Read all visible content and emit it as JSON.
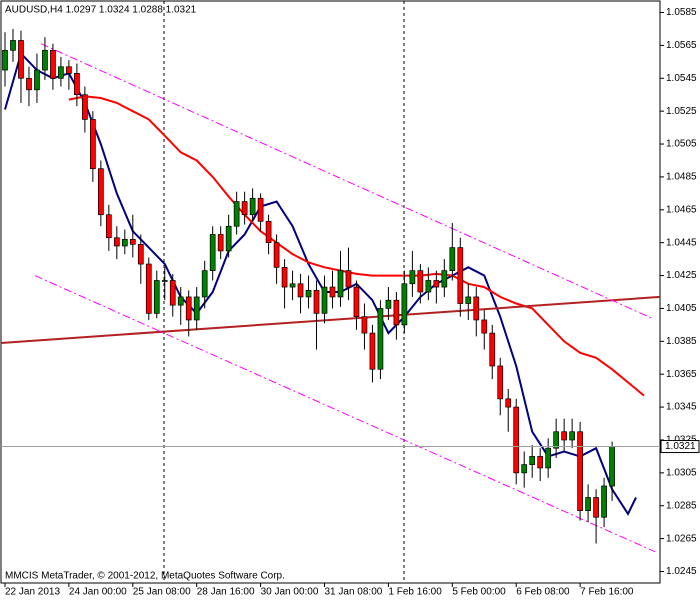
{
  "chart_data": {
    "type": "candlestick",
    "title": "AUDUSD,H4  1.0297 1.0324 1.0288 1.0321",
    "footer": "MMCIS MetaTrader, © 2001-2012, MetaQuotes Software Corp.",
    "categories": [
      "22 Jan 2013",
      null,
      null,
      null,
      null,
      null,
      null,
      null,
      "24 Jan 00:00",
      null,
      null,
      null,
      null,
      null,
      null,
      null,
      "25 Jan 08:00",
      null,
      null,
      null,
      null,
      null,
      null,
      null,
      "28 Jan 16:00",
      null,
      null,
      null,
      null,
      null,
      null,
      null,
      "30 Jan 00:00",
      null,
      null,
      null,
      null,
      null,
      null,
      null,
      "31 Jan 08:00",
      null,
      null,
      null,
      null,
      null,
      null,
      null,
      "1 Feb 16:00",
      null,
      null,
      null,
      null,
      null,
      null,
      null,
      "5 Feb 00:00",
      null,
      null,
      null,
      null,
      null,
      null,
      null,
      "6 Feb 08:00",
      null,
      null,
      null,
      null,
      null,
      null,
      null,
      "7 Feb 16:00",
      null,
      null,
      null,
      null
    ],
    "open": [
      1.055,
      1.0562,
      1.0568,
      1.0545,
      1.0538,
      1.055,
      1.0562,
      1.0545,
      1.0552,
      1.0548,
      1.0535,
      1.052,
      1.049,
      1.0462,
      1.0448,
      1.0443,
      1.0447,
      1.0444,
      1.0432,
      1.0402,
      1.0422,
      1.0422,
      1.0407,
      1.0412,
      1.0398,
      1.0412,
      1.0428,
      1.045,
      1.044,
      1.0455,
      1.047,
      1.0462,
      1.0472,
      1.0458,
      1.0445,
      1.043,
      1.0418,
      1.042,
      1.0412,
      1.0416,
      1.0402,
      1.0418,
      1.0412,
      1.0428,
      1.0418,
      1.04,
      1.039,
      1.0368,
      1.0405,
      1.041,
      1.0395,
      1.042,
      1.0428,
      1.0415,
      1.0422,
      1.0418,
      1.0428,
      1.0442,
      1.0408,
      1.0412,
      1.0398,
      1.039,
      1.037,
      1.035,
      1.0345,
      1.0305,
      1.031,
      1.0315,
      1.0308,
      1.032,
      1.033,
      1.0325,
      1.033,
      1.0282,
      1.029,
      1.0278,
      1.0297
    ],
    "high": [
      1.0573,
      1.0575,
      1.0574,
      1.0552,
      1.056,
      1.057,
      1.0566,
      1.0558,
      1.0556,
      1.0554,
      1.054,
      1.0525,
      1.0495,
      1.0468,
      1.0455,
      1.0453,
      1.0462,
      1.045,
      1.0436,
      1.0428,
      1.043,
      1.0426,
      1.0418,
      1.0416,
      1.0418,
      1.0434,
      1.0455,
      1.0455,
      1.0462,
      1.0476,
      1.0476,
      1.0478,
      1.0475,
      1.0462,
      1.045,
      1.0435,
      1.0428,
      1.0426,
      1.0425,
      1.0422,
      1.0425,
      1.0428,
      1.044,
      1.0442,
      1.0422,
      1.0408,
      1.0395,
      1.041,
      1.0418,
      1.0415,
      1.0428,
      1.044,
      1.0432,
      1.043,
      1.0428,
      1.0435,
      1.0457,
      1.0448,
      1.042,
      1.0418,
      1.0404,
      1.0395,
      1.0375,
      1.0356,
      1.035,
      1.0318,
      1.0322,
      1.032,
      1.0326,
      1.0338,
      1.0338,
      1.0338,
      1.0336,
      1.0298,
      1.0295,
      1.0302,
      1.0324
    ],
    "low": [
      1.054,
      1.0555,
      1.053,
      1.0528,
      1.053,
      1.0544,
      1.0538,
      1.054,
      1.0538,
      1.0528,
      1.0512,
      1.0482,
      1.0455,
      1.044,
      1.0435,
      1.0438,
      1.0436,
      1.042,
      1.0398,
      1.0399,
      1.041,
      1.04,
      1.0395,
      1.0388,
      1.0392,
      1.0405,
      1.0422,
      1.0435,
      1.0436,
      1.045,
      1.0456,
      1.0458,
      1.0452,
      1.0438,
      1.042,
      1.0405,
      1.041,
      1.0402,
      1.0405,
      1.038,
      1.0396,
      1.0405,
      1.0406,
      1.041,
      1.0392,
      1.038,
      1.036,
      1.0362,
      1.0398,
      1.0386,
      1.039,
      1.0412,
      1.0408,
      1.041,
      1.0408,
      1.0412,
      1.0422,
      1.04,
      1.0398,
      1.0388,
      1.038,
      1.0362,
      1.034,
      1.033,
      1.0298,
      1.0296,
      1.0302,
      1.03,
      1.0302,
      1.0314,
      1.0318,
      1.032,
      1.0276,
      1.0275,
      1.0262,
      1.0272,
      1.0288
    ],
    "close": [
      1.0562,
      1.0568,
      1.0545,
      1.0538,
      1.055,
      1.0562,
      1.0545,
      1.0552,
      1.0548,
      1.0535,
      1.052,
      1.049,
      1.0462,
      1.0448,
      1.0443,
      1.0447,
      1.0444,
      1.0432,
      1.0402,
      1.0422,
      1.0422,
      1.0407,
      1.0412,
      1.0398,
      1.0412,
      1.0428,
      1.045,
      1.044,
      1.0455,
      1.047,
      1.0462,
      1.0472,
      1.0458,
      1.0445,
      1.043,
      1.0418,
      1.042,
      1.0412,
      1.0416,
      1.0402,
      1.0418,
      1.0412,
      1.0428,
      1.0418,
      1.04,
      1.039,
      1.0368,
      1.0405,
      1.041,
      1.0395,
      1.042,
      1.0428,
      1.0415,
      1.0422,
      1.0418,
      1.0428,
      1.0442,
      1.0408,
      1.0412,
      1.0398,
      1.039,
      1.037,
      1.035,
      1.0345,
      1.0305,
      1.031,
      1.0315,
      1.0308,
      1.032,
      1.033,
      1.0325,
      1.033,
      1.0282,
      1.029,
      1.0278,
      1.0297,
      1.0321
    ],
    "up_color": "#008000",
    "down_color": "#ff0000",
    "overlays": [
      {
        "color": "#000080",
        "style": "solid",
        "width": 2,
        "x": [
          0,
          2,
          4,
          6,
          8,
          10,
          12,
          14,
          16,
          18,
          20,
          22,
          24,
          26,
          28,
          30,
          32,
          34,
          36,
          38,
          40,
          42,
          44,
          46,
          48,
          50,
          52,
          54,
          56,
          58,
          60,
          62,
          64,
          66,
          68,
          70,
          72,
          74,
          76,
          78,
          79
        ],
        "values": [
          1.0526,
          1.056,
          1.055,
          1.0545,
          1.0548,
          1.053,
          1.0505,
          1.0475,
          1.0452,
          1.0442,
          1.0432,
          1.0412,
          1.0402,
          1.0415,
          1.044,
          1.045,
          1.0467,
          1.047,
          1.0455,
          1.0432,
          1.0415,
          1.0415,
          1.042,
          1.041,
          1.039,
          1.04,
          1.0412,
          1.042,
          1.0425,
          1.043,
          1.0425,
          1.04,
          1.037,
          1.033,
          1.0315,
          1.0318,
          1.0315,
          1.032,
          1.0295,
          1.028,
          1.029
        ]
      },
      {
        "color": "#ff0000",
        "style": "solid",
        "width": 2,
        "x": [
          8,
          10,
          12,
          14,
          16,
          18,
          20,
          22,
          24,
          26,
          28,
          30,
          32,
          34,
          36,
          38,
          40,
          42,
          44,
          46,
          48,
          50,
          52,
          54,
          56,
          58,
          60,
          62,
          64,
          66,
          68,
          70,
          72,
          74,
          76,
          78,
          80
        ],
        "values": [
          1.0532,
          1.0534,
          1.0533,
          1.053,
          1.0525,
          1.052,
          1.051,
          1.05,
          1.0495,
          1.0485,
          1.0473,
          1.0462,
          1.0452,
          1.0445,
          1.0438,
          1.0433,
          1.043,
          1.0428,
          1.0426,
          1.0425,
          1.0425,
          1.0425,
          1.0425,
          1.0426,
          1.0425,
          1.042,
          1.0418,
          1.0412,
          1.0408,
          1.0405,
          1.0395,
          1.0385,
          1.0378,
          1.0375,
          1.0368,
          1.036,
          1.0352
        ]
      },
      {
        "color": "#b22222",
        "style": "solid",
        "width": 2,
        "x": [
          -0.5,
          82
        ],
        "values": [
          1.0384,
          1.0412
        ]
      },
      {
        "color": "#ff00ff",
        "style": "dashdot",
        "width": 1,
        "x": [
          4.5,
          81
        ],
        "values": [
          1.0566,
          1.0399
        ]
      },
      {
        "color": "#ff00ff",
        "style": "dashdot",
        "width": 1,
        "x": [
          3.75,
          81.4
        ],
        "values": [
          1.0425,
          1.0257
        ]
      }
    ],
    "current_price": 1.0321,
    "xlim": [
      -0.5,
      82
    ],
    "ylim": [
      1.0238,
      1.0592
    ],
    "yticks": [
      1.0245,
      1.0265,
      1.0285,
      1.0305,
      1.0325,
      1.0345,
      1.0365,
      1.0385,
      1.0405,
      1.0425,
      1.0445,
      1.0465,
      1.0485,
      1.0505,
      1.0525,
      1.0545,
      1.0565,
      1.0585
    ]
  }
}
